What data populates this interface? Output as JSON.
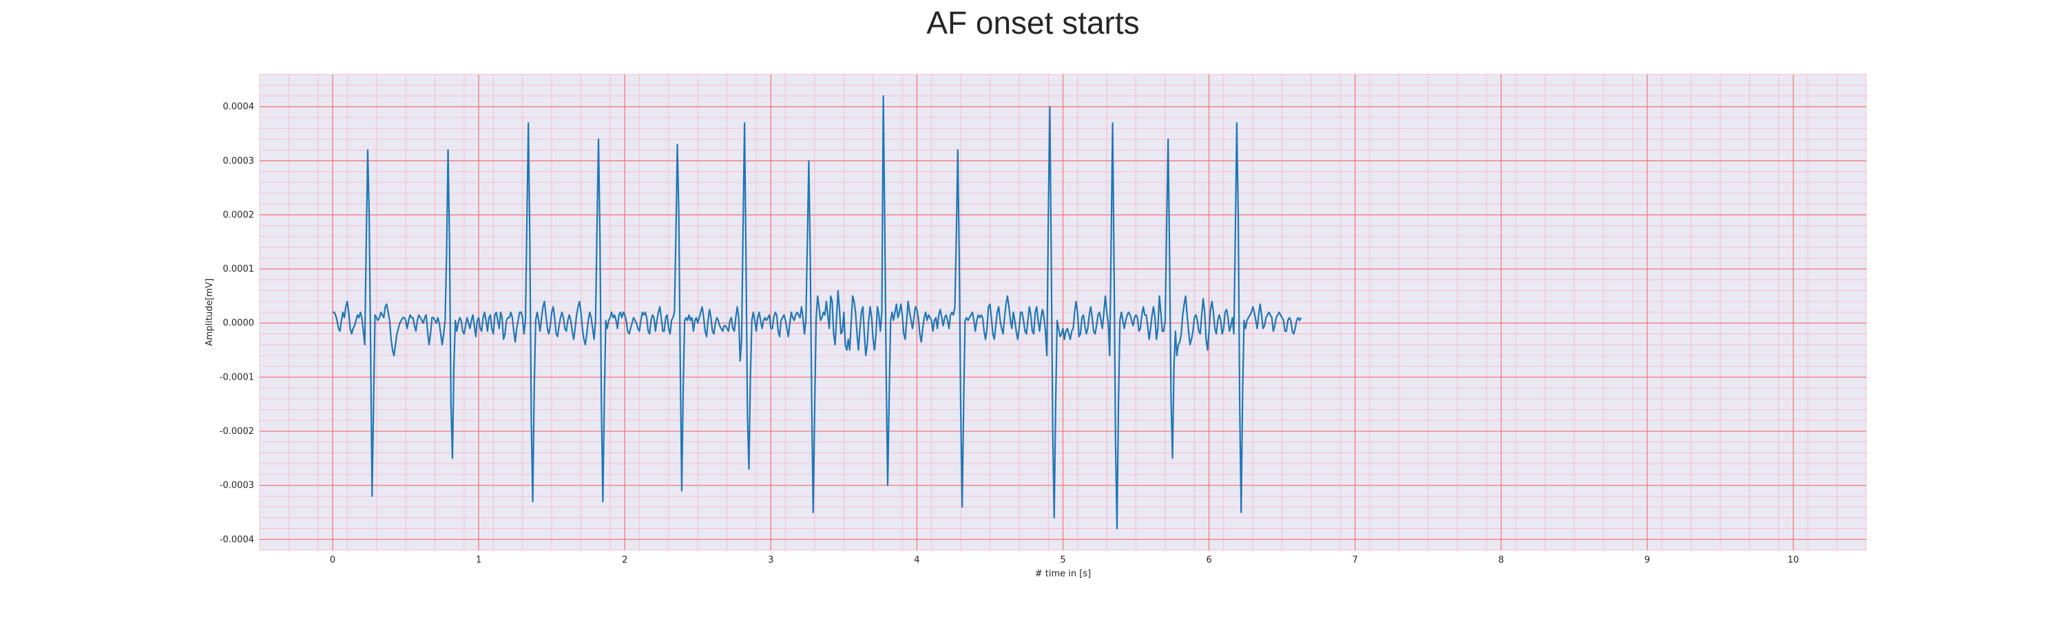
{
  "chart_data": {
    "type": "line",
    "title": "AF onset starts",
    "xlabel": "# time in [s]",
    "ylabel": "Amplitude[mV]",
    "xlim": [
      -0.5,
      10.5
    ],
    "ylim": [
      -0.00042,
      0.00046
    ],
    "x_ticks": [
      "0",
      "1",
      "2",
      "3",
      "4",
      "5",
      "6",
      "7",
      "8",
      "9",
      "10"
    ],
    "y_ticks": [
      "-0.0004",
      "-0.0003",
      "-0.0002",
      "-0.0001",
      "0.0000",
      "0.0001",
      "0.0002",
      "0.0003",
      "0.0004"
    ],
    "grid": true,
    "background_color": "#eae8f3",
    "major_grid_color": "#f07a7a",
    "minor_grid_color": "#f4b8c4",
    "line_color": "#1f77b4",
    "series": [
      {
        "sample_rate_hz": 100,
        "values": [
          2e-05,
          2e-05,
          1.5e-05,
          5e-06,
          -1e-05,
          -1.5e-05,
          5e-06,
          2e-05,
          1e-05,
          3e-05,
          4e-05,
          2e-05,
          -1e-05,
          -2e-05,
          -1e-05,
          -5e-06,
          5e-06,
          1.5e-05,
          1e-05,
          2e-05,
          1e-05,
          -1.5e-05,
          -4e-05,
          0.00015,
          0.00032,
          0.0002,
          -5e-05,
          -0.00032,
          -0.00015,
          1.5e-05,
          1e-05,
          5e-06,
          1e-05,
          2e-05,
          1.5e-05,
          1e-05,
          3e-05,
          3.5e-05,
          2e-05,
          5e-06,
          -3e-05,
          -5e-05,
          -6e-05,
          -4e-05,
          -2e-05,
          -1e-05,
          0,
          5e-06,
          1e-05,
          1e-05,
          5e-06,
          -1e-05,
          5e-06,
          1.5e-05,
          1e-05,
          1e-05,
          -5e-06,
          -1.5e-05,
          5e-06,
          1.5e-05,
          1e-05,
          5e-06,
          0,
          1e-05,
          1.5e-05,
          -1.5e-05,
          -4e-05,
          -2e-05,
          1e-05,
          1e-05,
          5e-06,
          0,
          1e-05,
          0,
          -2e-05,
          -4e-05,
          -2e-05,
          5e-06,
          0.00013,
          0.00032,
          0.00015,
          -0.00015,
          -0.00025,
          -8e-05,
          5e-06,
          -1.5e-05,
          0,
          1e-05,
          5e-06,
          -1.5e-05,
          -2e-05,
          -5e-06,
          1e-05,
          0,
          -1e-05,
          5e-06,
          1.5e-05,
          -5e-06,
          -2.5e-05,
          5e-06,
          1e-05,
          -1e-05,
          -1.5e-05,
          1e-05,
          2e-05,
          5e-06,
          -1.5e-05,
          1e-05,
          1.5e-05,
          -1e-05,
          -2e-05,
          1.5e-05,
          2e-05,
          5e-06,
          -1e-05,
          2e-05,
          1e-05,
          -3e-05,
          -2e-05,
          5e-06,
          1e-05,
          1e-05,
          2e-05,
          1e-05,
          -1.5e-05,
          -3.5e-05,
          -1e-05,
          5e-06,
          2e-05,
          2e-05,
          1e-05,
          -2e-05,
          5e-06,
          0.00019,
          0.00037,
          0.00015,
          -0.00018,
          -0.00033,
          -0.00012,
          5e-06,
          2e-05,
          5e-06,
          -1.5e-05,
          1e-05,
          3e-05,
          4e-05,
          1.5e-05,
          -1e-05,
          -2e-05,
          -5e-06,
          2e-05,
          3e-05,
          1e-05,
          -2e-05,
          -2.5e-05,
          -5e-06,
          1e-05,
          2e-05,
          1e-05,
          -1e-05,
          -1.5e-05,
          5e-06,
          1.5e-05,
          5e-06,
          -1.5e-05,
          -3e-05,
          -1e-05,
          1.5e-05,
          3e-05,
          4e-05,
          2e-05,
          -1e-05,
          -3e-05,
          -4e-05,
          -2e-05,
          5e-06,
          2e-05,
          1e-05,
          -1e-05,
          -3e-05,
          5e-06,
          0.00018,
          0.00034,
          0.00016,
          -0.00015,
          -0.00033,
          -0.00014,
          5e-06,
          -1e-05,
          5e-06,
          1e-05,
          2e-05,
          1e-05,
          1.5e-05,
          5e-06,
          -1e-05,
          1.5e-05,
          2e-05,
          1e-05,
          2e-05,
          1.5e-05,
          5e-06,
          -1.5e-05,
          -2e-05,
          -1e-05,
          0,
          1e-05,
          5e-06,
          0,
          -1e-05,
          -1.5e-05,
          5e-06,
          2e-05,
          1.5e-05,
          2e-05,
          1e-05,
          -1.5e-05,
          -2e-05,
          5e-06,
          1.5e-05,
          1e-05,
          -1.5e-05,
          5e-06,
          2e-05,
          3e-05,
          1e-05,
          -1.5e-05,
          -1.5e-05,
          1e-05,
          1.5e-05,
          -1e-05,
          -2e-05,
          5e-06,
          1e-05,
          2e-05,
          0.00016,
          0.00033,
          0.0002,
          -8e-05,
          -0.00031,
          -0.00012,
          5e-06,
          1e-05,
          5e-06,
          1.5e-05,
          5e-06,
          1e-05,
          -1.5e-05,
          5e-06,
          1e-05,
          0,
          1e-05,
          2e-05,
          3e-05,
          1e-05,
          -1.5e-05,
          -2.5e-05,
          5e-06,
          2.5e-05,
          1e-05,
          -1.5e-05,
          -2e-05,
          0,
          1e-05,
          5e-06,
          -5e-06,
          -1e-05,
          -1.5e-05,
          -5e-06,
          -5e-06,
          -1e-05,
          -1.5e-05,
          5e-06,
          1e-05,
          -1e-05,
          -1.5e-05,
          1e-05,
          3e-05,
          1e-05,
          -7e-05,
          -3e-05,
          0.00018,
          0.00037,
          0.00012,
          -0.00017,
          -0.00027,
          -0.0001,
          5e-06,
          2e-05,
          5e-06,
          -1.5e-05,
          1e-05,
          2e-05,
          5e-06,
          -1e-05,
          5e-06,
          1e-05,
          5e-06,
          1e-05,
          1.5e-05,
          -1e-05,
          -1e-05,
          1e-05,
          2e-05,
          1.5e-05,
          -1.5e-05,
          -2.5e-05,
          5e-06,
          1e-05,
          1.5e-05,
          5e-06,
          -1e-05,
          -2.5e-05,
          0,
          2e-05,
          1e-05,
          5e-06,
          1.5e-05,
          2e-05,
          1.5e-05,
          1e-05,
          3e-05,
          1e-05,
          -2e-05,
          5e-06,
          0.00015,
          0.0003,
          0.00012,
          -0.00015,
          -0.00035,
          -0.00016,
          5e-06,
          5e-05,
          3e-05,
          5e-06,
          1e-05,
          2e-05,
          1.5e-05,
          4e-05,
          1.5e-05,
          -1e-05,
          5e-05,
          4e-05,
          -2e-05,
          -4e-05,
          1e-05,
          6e-05,
          2.5e-05,
          -2e-05,
          -1.5e-05,
          2e-05,
          -4e-05,
          -5e-05,
          -3e-05,
          -5e-05,
          0,
          5e-05,
          4e-05,
          2e-05,
          -2e-05,
          -5e-05,
          -1e-05,
          2e-05,
          3e-05,
          -2e-05,
          -6e-05,
          -4e-05,
          5e-06,
          3e-05,
          1e-05,
          -3e-05,
          -5e-05,
          -2e-05,
          3e-05,
          1.5e-05,
          -1.5e-05,
          2e-05,
          0.00042,
          0.00018,
          -0.0001,
          -0.0003,
          -0.00014,
          5e-06,
          2e-05,
          5e-06,
          2e-05,
          3.5e-05,
          1e-05,
          2e-05,
          3.5e-05,
          1.5e-05,
          -2e-05,
          -3e-05,
          5e-06,
          4e-05,
          2e-05,
          5e-06,
          -1e-05,
          1e-05,
          3e-05,
          2.5e-05,
          1e-05,
          -2e-05,
          -3.5e-05,
          -1e-05,
          1e-05,
          2e-05,
          5e-06,
          1.5e-05,
          1e-05,
          5e-06,
          -1.5e-05,
          5e-06,
          1e-05,
          -1e-05,
          1.5e-05,
          2.5e-05,
          1e-05,
          -5e-06,
          1e-05,
          1.5e-05,
          5e-06,
          -1e-05,
          1.5e-05,
          2e-05,
          1.5e-05,
          3e-05,
          0.00016,
          0.00032,
          0.00012,
          -0.00016,
          -0.00034,
          -0.00015,
          5e-06,
          1e-05,
          5e-06,
          1e-05,
          1.5e-05,
          2e-05,
          5e-06,
          -1.5e-05,
          5e-06,
          1.5e-05,
          1e-05,
          1.5e-05,
          1e-05,
          -1.5e-05,
          -3e-05,
          -1e-05,
          3e-05,
          3.5e-05,
          1e-05,
          -2e-05,
          -3e-05,
          -5e-06,
          2e-05,
          3e-05,
          5e-06,
          -1e-05,
          -2e-05,
          1e-05,
          3.5e-05,
          5e-05,
          3e-05,
          5e-06,
          -1e-05,
          2e-05,
          5e-06,
          -1.5e-05,
          -3e-05,
          -1e-05,
          2e-05,
          2e-05,
          5e-06,
          -1.5e-05,
          -2e-05,
          5e-06,
          3e-05,
          1.5e-05,
          -1.5e-05,
          -2e-05,
          2e-05,
          3e-05,
          5e-06,
          -1.5e-05,
          1e-05,
          2.5e-05,
          1e-05,
          -1.5e-05,
          -6e-05,
          0.0002,
          0.0004,
          0.00012,
          -0.0002,
          -0.00036,
          -0.00015,
          5e-06,
          -1e-05,
          -2.5e-05,
          -2e-05,
          -1e-05,
          -3e-05,
          -1.5e-05,
          -1e-05,
          -2e-05,
          -3e-05,
          -1.5e-05,
          -1e-05,
          2e-05,
          4e-05,
          2e-05,
          -2.5e-05,
          -2e-05,
          1e-05,
          1.5e-05,
          -5e-06,
          -2e-05,
          -1e-05,
          1.5e-05,
          3e-05,
          1e-05,
          -1.5e-05,
          -2e-05,
          -5e-06,
          1.5e-05,
          2e-05,
          5e-06,
          -1e-05,
          2e-05,
          5e-05,
          2e-05,
          0,
          -6e-05,
          0.00015,
          0.00037,
          0.0001,
          -0.00022,
          -0.00038,
          -0.00015,
          5e-06,
          2e-05,
          5e-06,
          -1e-05,
          5e-06,
          1.5e-05,
          2e-05,
          1.5e-05,
          5e-06,
          -5e-06,
          1e-05,
          1.5e-05,
          1e-05,
          -1.5e-05,
          -1e-05,
          1.5e-05,
          3e-05,
          1.5e-05,
          1.5e-05,
          -5e-06,
          -3e-05,
          -1e-05,
          1.5e-05,
          3e-05,
          1e-05,
          -3e-05,
          -1e-05,
          5e-05,
          2e-05,
          -1.5e-05,
          -1.5e-05,
          5e-06,
          0.00018,
          0.00034,
          0.00012,
          -0.00014,
          -0.00025,
          -8e-05,
          -1.5e-05,
          -6e-05,
          -4e-05,
          -3.5e-05,
          -2e-05,
          1.5e-05,
          3.5e-05,
          5e-05,
          1.5e-05,
          -1.5e-05,
          -4e-05,
          -3e-05,
          -1.5e-05,
          1e-05,
          1.5e-05,
          5e-06,
          -1.5e-05,
          -2e-05,
          1.5e-05,
          4.5e-05,
          2e-05,
          -3e-05,
          -5e-05,
          -1.5e-05,
          2.5e-05,
          4e-05,
          2e-05,
          -1e-05,
          -2e-05,
          5e-06,
          1.5e-05,
          5e-06,
          -2e-05,
          -1e-05,
          2e-05,
          2.5e-05,
          1e-05,
          -1.5e-05,
          -5e-06,
          1e-05,
          -2e-05,
          0.00016,
          0.00037,
          0.0002,
          -0.00015,
          -0.00035,
          -0.00013,
          5e-06,
          -1e-05,
          5e-06,
          1e-05,
          1.5e-05,
          2e-05,
          3e-05,
          2e-05,
          5e-06,
          -1e-05,
          1.5e-05,
          3.5e-05,
          1.5e-05,
          -1e-05,
          -5e-06,
          1e-05,
          1.5e-05,
          2e-05,
          1.5e-05,
          1e-05,
          -1.5e-05,
          -5e-06,
          1e-05,
          1.5e-05,
          2e-05,
          1.5e-05,
          1e-05,
          5e-06,
          -1.5e-05,
          -1.5e-05,
          5e-06,
          1e-05,
          5e-06,
          -1.5e-05,
          -2e-05,
          -1e-05,
          5e-06,
          1e-05,
          5e-06,
          1e-05
        ]
      }
    ]
  }
}
